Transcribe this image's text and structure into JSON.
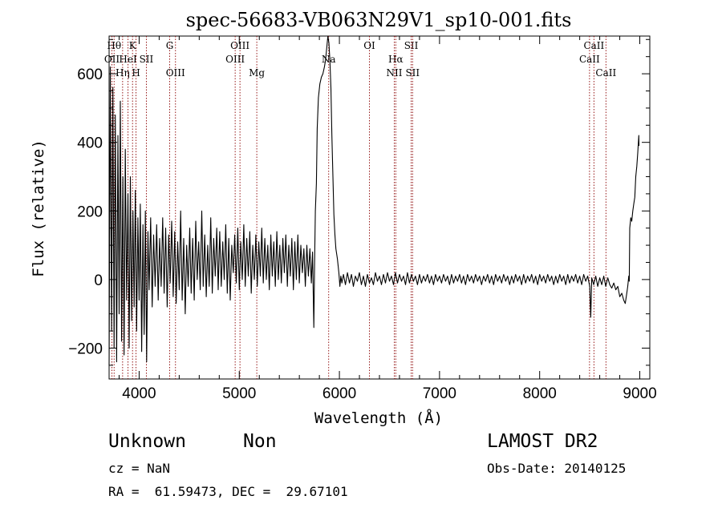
{
  "chart_data": {
    "type": "line",
    "title": "spec-56683-VB063N29V1_sp10-001.fits",
    "xlabel": "Wavelength (Å)",
    "ylabel": "Flux (relative)",
    "xlim": [
      3700,
      9100
    ],
    "ylim": [
      -290,
      710
    ],
    "xticks": [
      4000,
      5000,
      6000,
      7000,
      8000,
      9000
    ],
    "yticks": [
      -200,
      0,
      200,
      400,
      600
    ],
    "xtick_labels": [
      "4000",
      "5000",
      "6000",
      "7000",
      "8000",
      "9000"
    ],
    "ytick_labels": [
      "−200",
      "0",
      "200",
      "400",
      "600"
    ],
    "grid": false,
    "line_color": "#000000",
    "marker_color": "#8b0000",
    "lines": [
      {
        "label": "Hθ",
        "x": 3750,
        "row": 0
      },
      {
        "label": "OII",
        "x": 3728,
        "row": 1
      },
      {
        "label": "Hη",
        "x": 3835,
        "row": 2
      },
      {
        "label": "K",
        "x": 3934,
        "row": 0
      },
      {
        "label": "HeI",
        "x": 3889,
        "row": 1
      },
      {
        "label": "H",
        "x": 3969,
        "row": 2
      },
      {
        "label": "SII",
        "x": 4072,
        "row": 1
      },
      {
        "label": "G",
        "x": 4305,
        "row": 0
      },
      {
        "label": "OIII",
        "x": 4363,
        "row": 2
      },
      {
        "label": "OIII",
        "x": 5007,
        "row": 0
      },
      {
        "label": "OIII",
        "x": 4959,
        "row": 1
      },
      {
        "label": "Mg",
        "x": 5175,
        "row": 2
      },
      {
        "label": "Na",
        "x": 5893,
        "row": 1
      },
      {
        "label": "OI",
        "x": 6300,
        "row": 0
      },
      {
        "label": "Hα",
        "x": 6563,
        "row": 1
      },
      {
        "label": "NII",
        "x": 6548,
        "row": 2
      },
      {
        "label": "SII",
        "x": 6717,
        "row": 0
      },
      {
        "label": "SII",
        "x": 6731,
        "row": 2
      },
      {
        "label": "CaII",
        "x": 8542,
        "row": 0
      },
      {
        "label": "CaII",
        "x": 8498,
        "row": 1
      },
      {
        "label": "CaII",
        "x": 8662,
        "row": 2
      }
    ],
    "spectrum": [
      [
        3700,
        -250
      ],
      [
        3712,
        620
      ],
      [
        3725,
        -150
      ],
      [
        3738,
        560
      ],
      [
        3750,
        -200
      ],
      [
        3762,
        480
      ],
      [
        3775,
        -240
      ],
      [
        3788,
        420
      ],
      [
        3800,
        -100
      ],
      [
        3812,
        520
      ],
      [
        3825,
        -180
      ],
      [
        3838,
        300
      ],
      [
        3850,
        -220
      ],
      [
        3862,
        380
      ],
      [
        3875,
        -60
      ],
      [
        3888,
        250
      ],
      [
        3900,
        -200
      ],
      [
        3912,
        300
      ],
      [
        3925,
        -120
      ],
      [
        3938,
        200
      ],
      [
        3950,
        -80
      ],
      [
        3962,
        260
      ],
      [
        3975,
        -150
      ],
      [
        3988,
        180
      ],
      [
        4000,
        -60
      ],
      [
        4012,
        220
      ],
      [
        4025,
        -210
      ],
      [
        4038,
        160
      ],
      [
        4050,
        -160
      ],
      [
        4062,
        200
      ],
      [
        4075,
        -240
      ],
      [
        4088,
        140
      ],
      [
        4100,
        -30
      ],
      [
        4115,
        180
      ],
      [
        4130,
        -80
      ],
      [
        4145,
        130
      ],
      [
        4160,
        -20
      ],
      [
        4175,
        160
      ],
      [
        4190,
        -60
      ],
      [
        4205,
        120
      ],
      [
        4220,
        -20
      ],
      [
        4235,
        180
      ],
      [
        4250,
        -40
      ],
      [
        4265,
        150
      ],
      [
        4280,
        -80
      ],
      [
        4295,
        130
      ],
      [
        4310,
        -10
      ],
      [
        4325,
        170
      ],
      [
        4340,
        -50
      ],
      [
        4355,
        140
      ],
      [
        4370,
        -70
      ],
      [
        4385,
        110
      ],
      [
        4400,
        -30
      ],
      [
        4415,
        200
      ],
      [
        4430,
        -60
      ],
      [
        4445,
        120
      ],
      [
        4460,
        -100
      ],
      [
        4475,
        100
      ],
      [
        4490,
        -20
      ],
      [
        4505,
        150
      ],
      [
        4520,
        -40
      ],
      [
        4535,
        120
      ],
      [
        4550,
        -60
      ],
      [
        4565,
        170
      ],
      [
        4580,
        0
      ],
      [
        4595,
        110
      ],
      [
        4610,
        -30
      ],
      [
        4625,
        200
      ],
      [
        4640,
        -20
      ],
      [
        4655,
        130
      ],
      [
        4670,
        -50
      ],
      [
        4685,
        100
      ],
      [
        4700,
        -20
      ],
      [
        4715,
        180
      ],
      [
        4730,
        -40
      ],
      [
        4745,
        120
      ],
      [
        4760,
        10
      ],
      [
        4775,
        150
      ],
      [
        4790,
        -30
      ],
      [
        4805,
        140
      ],
      [
        4820,
        -20
      ],
      [
        4835,
        110
      ],
      [
        4850,
        0
      ],
      [
        4865,
        160
      ],
      [
        4880,
        -40
      ],
      [
        4895,
        120
      ],
      [
        4910,
        -60
      ],
      [
        4925,
        100
      ],
      [
        4940,
        20
      ],
      [
        4955,
        130
      ],
      [
        4970,
        -10
      ],
      [
        4985,
        150
      ],
      [
        5000,
        -30
      ],
      [
        5015,
        110
      ],
      [
        5030,
        0
      ],
      [
        5045,
        160
      ],
      [
        5060,
        -20
      ],
      [
        5075,
        120
      ],
      [
        5090,
        10
      ],
      [
        5105,
        140
      ],
      [
        5120,
        -40
      ],
      [
        5135,
        100
      ],
      [
        5150,
        0
      ],
      [
        5165,
        130
      ],
      [
        5180,
        -20
      ],
      [
        5195,
        110
      ],
      [
        5210,
        10
      ],
      [
        5225,
        150
      ],
      [
        5240,
        -10
      ],
      [
        5255,
        120
      ],
      [
        5270,
        0
      ],
      [
        5285,
        100
      ],
      [
        5300,
        -30
      ],
      [
        5315,
        130
      ],
      [
        5330,
        10
      ],
      [
        5345,
        110
      ],
      [
        5360,
        -20
      ],
      [
        5375,
        140
      ],
      [
        5390,
        0
      ],
      [
        5405,
        100
      ],
      [
        5420,
        -10
      ],
      [
        5435,
        120
      ],
      [
        5450,
        20
      ],
      [
        5465,
        130
      ],
      [
        5480,
        -20
      ],
      [
        5495,
        100
      ],
      [
        5510,
        10
      ],
      [
        5525,
        120
      ],
      [
        5540,
        -30
      ],
      [
        5555,
        110
      ],
      [
        5570,
        0
      ],
      [
        5585,
        130
      ],
      [
        5600,
        -10
      ],
      [
        5615,
        100
      ],
      [
        5630,
        20
      ],
      [
        5645,
        90
      ],
      [
        5660,
        -20
      ],
      [
        5675,
        100
      ],
      [
        5690,
        10
      ],
      [
        5705,
        90
      ],
      [
        5720,
        -10
      ],
      [
        5732,
        80
      ],
      [
        5745,
        -140
      ],
      [
        5752,
        40
      ],
      [
        5760,
        200
      ],
      [
        5770,
        280
      ],
      [
        5778,
        440
      ],
      [
        5790,
        530
      ],
      [
        5805,
        570
      ],
      [
        5820,
        590
      ],
      [
        5835,
        600
      ],
      [
        5850,
        620
      ],
      [
        5862,
        640
      ],
      [
        5875,
        680
      ],
      [
        5885,
        710
      ],
      [
        5895,
        690
      ],
      [
        5905,
        640
      ],
      [
        5915,
        560
      ],
      [
        5925,
        420
      ],
      [
        5935,
        300
      ],
      [
        5945,
        190
      ],
      [
        5955,
        130
      ],
      [
        5965,
        90
      ],
      [
        5980,
        60
      ],
      [
        5995,
        20
      ],
      [
        6005,
        -20
      ],
      [
        6015,
        10
      ],
      [
        6025,
        -10
      ],
      [
        6040,
        15
      ],
      [
        6060,
        -15
      ],
      [
        6080,
        20
      ],
      [
        6100,
        -10
      ],
      [
        6120,
        15
      ],
      [
        6140,
        -20
      ],
      [
        6160,
        10
      ],
      [
        6180,
        -5
      ],
      [
        6200,
        20
      ],
      [
        6220,
        -15
      ],
      [
        6240,
        10
      ],
      [
        6260,
        -20
      ],
      [
        6280,
        15
      ],
      [
        6300,
        -10
      ],
      [
        6320,
        5
      ],
      [
        6340,
        -15
      ],
      [
        6360,
        20
      ],
      [
        6380,
        -5
      ],
      [
        6400,
        10
      ],
      [
        6420,
        -15
      ],
      [
        6440,
        15
      ],
      [
        6460,
        -10
      ],
      [
        6480,
        20
      ],
      [
        6500,
        -5
      ],
      [
        6520,
        10
      ],
      [
        6540,
        -15
      ],
      [
        6560,
        20
      ],
      [
        6580,
        -10
      ],
      [
        6600,
        15
      ],
      [
        6620,
        -5
      ],
      [
        6640,
        10
      ],
      [
        6660,
        -15
      ],
      [
        6680,
        20
      ],
      [
        6700,
        -10
      ],
      [
        6720,
        15
      ],
      [
        6740,
        -5
      ],
      [
        6760,
        10
      ],
      [
        6780,
        -15
      ],
      [
        6800,
        15
      ],
      [
        6820,
        -10
      ],
      [
        6840,
        10
      ],
      [
        6860,
        -5
      ],
      [
        6880,
        15
      ],
      [
        6900,
        -10
      ],
      [
        6920,
        10
      ],
      [
        6940,
        -15
      ],
      [
        6960,
        15
      ],
      [
        6980,
        -5
      ],
      [
        7000,
        10
      ],
      [
        7020,
        -10
      ],
      [
        7040,
        15
      ],
      [
        7060,
        -5
      ],
      [
        7080,
        10
      ],
      [
        7100,
        -15
      ],
      [
        7120,
        15
      ],
      [
        7140,
        -10
      ],
      [
        7160,
        10
      ],
      [
        7180,
        -5
      ],
      [
        7200,
        15
      ],
      [
        7220,
        -10
      ],
      [
        7240,
        10
      ],
      [
        7260,
        -15
      ],
      [
        7280,
        15
      ],
      [
        7300,
        -5
      ],
      [
        7320,
        10
      ],
      [
        7340,
        -10
      ],
      [
        7360,
        15
      ],
      [
        7380,
        -5
      ],
      [
        7400,
        10
      ],
      [
        7420,
        -15
      ],
      [
        7440,
        10
      ],
      [
        7460,
        -5
      ],
      [
        7480,
        15
      ],
      [
        7500,
        -10
      ],
      [
        7520,
        10
      ],
      [
        7540,
        -15
      ],
      [
        7560,
        15
      ],
      [
        7580,
        -5
      ],
      [
        7600,
        10
      ],
      [
        7620,
        -10
      ],
      [
        7640,
        15
      ],
      [
        7660,
        -5
      ],
      [
        7680,
        10
      ],
      [
        7700,
        -15
      ],
      [
        7720,
        10
      ],
      [
        7740,
        -10
      ],
      [
        7760,
        15
      ],
      [
        7780,
        -5
      ],
      [
        7800,
        10
      ],
      [
        7820,
        -15
      ],
      [
        7840,
        15
      ],
      [
        7860,
        -10
      ],
      [
        7880,
        10
      ],
      [
        7900,
        -5
      ],
      [
        7920,
        15
      ],
      [
        7940,
        -10
      ],
      [
        7960,
        10
      ],
      [
        7980,
        -15
      ],
      [
        8000,
        15
      ],
      [
        8020,
        -5
      ],
      [
        8040,
        10
      ],
      [
        8060,
        -10
      ],
      [
        8080,
        15
      ],
      [
        8100,
        -5
      ],
      [
        8120,
        10
      ],
      [
        8140,
        -15
      ],
      [
        8160,
        10
      ],
      [
        8180,
        -10
      ],
      [
        8200,
        15
      ],
      [
        8220,
        -5
      ],
      [
        8240,
        10
      ],
      [
        8260,
        -15
      ],
      [
        8280,
        15
      ],
      [
        8300,
        -10
      ],
      [
        8320,
        10
      ],
      [
        8340,
        -5
      ],
      [
        8360,
        15
      ],
      [
        8380,
        -10
      ],
      [
        8400,
        10
      ],
      [
        8420,
        -15
      ],
      [
        8440,
        15
      ],
      [
        8460,
        -5
      ],
      [
        8480,
        10
      ],
      [
        8500,
        -20
      ],
      [
        8510,
        -110
      ],
      [
        8520,
        5
      ],
      [
        8540,
        -15
      ],
      [
        8560,
        10
      ],
      [
        8580,
        -20
      ],
      [
        8600,
        5
      ],
      [
        8620,
        -15
      ],
      [
        8640,
        10
      ],
      [
        8660,
        -20
      ],
      [
        8680,
        5
      ],
      [
        8700,
        -15
      ],
      [
        8720,
        -25
      ],
      [
        8740,
        -10
      ],
      [
        8760,
        -30
      ],
      [
        8780,
        -20
      ],
      [
        8800,
        -50
      ],
      [
        8820,
        -40
      ],
      [
        8840,
        -60
      ],
      [
        8855,
        -70
      ],
      [
        8870,
        -40
      ],
      [
        8880,
        -20
      ],
      [
        8890,
        10
      ],
      [
        8895,
        -5
      ],
      [
        8900,
        150
      ],
      [
        8910,
        180
      ],
      [
        8920,
        170
      ],
      [
        8930,
        200
      ],
      [
        8940,
        220
      ],
      [
        8950,
        240
      ],
      [
        8960,
        300
      ],
      [
        8970,
        330
      ],
      [
        8980,
        370
      ],
      [
        8990,
        420
      ],
      [
        8992,
        390
      ]
    ]
  },
  "info": {
    "object_class": "Unknown",
    "object_subclass": "Non",
    "cz": "cz = NaN",
    "coords": "RA =  61.59473, DEC =  29.67101",
    "survey": "LAMOST DR2",
    "obs_date": "Obs-Date: 20140125"
  }
}
